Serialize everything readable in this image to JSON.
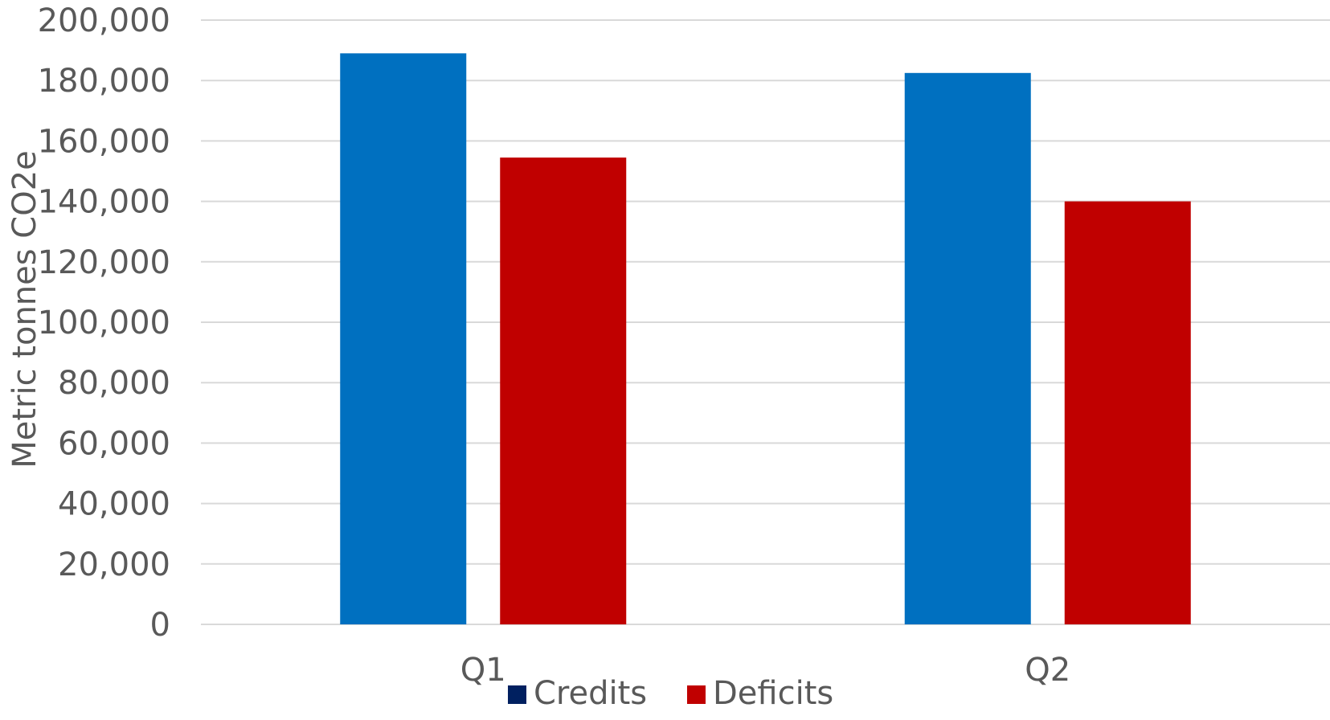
{
  "chart_data": {
    "type": "bar",
    "title": "",
    "xlabel": "",
    "ylabel": "Metric tonnes CO2e",
    "categories": [
      "Q1",
      "Q2"
    ],
    "series": [
      {
        "name": "Credits",
        "values": [
          189000,
          182500
        ],
        "color": "#0070c0",
        "legend_color": "#002060"
      },
      {
        "name": "Deficits",
        "values": [
          154500,
          140000
        ],
        "color": "#c00000",
        "legend_color": "#c00000"
      }
    ],
    "ylim": [
      0,
      200000
    ],
    "yticks": [
      0,
      20000,
      40000,
      60000,
      80000,
      100000,
      120000,
      140000,
      160000,
      180000,
      200000
    ],
    "ytick_labels": [
      "0",
      "20,000",
      "40,000",
      "60,000",
      "80,000",
      "100,000",
      "120,000",
      "140,000",
      "160,000",
      "180,000",
      "200,000"
    ],
    "grid": true,
    "legend_position": "bottom"
  }
}
